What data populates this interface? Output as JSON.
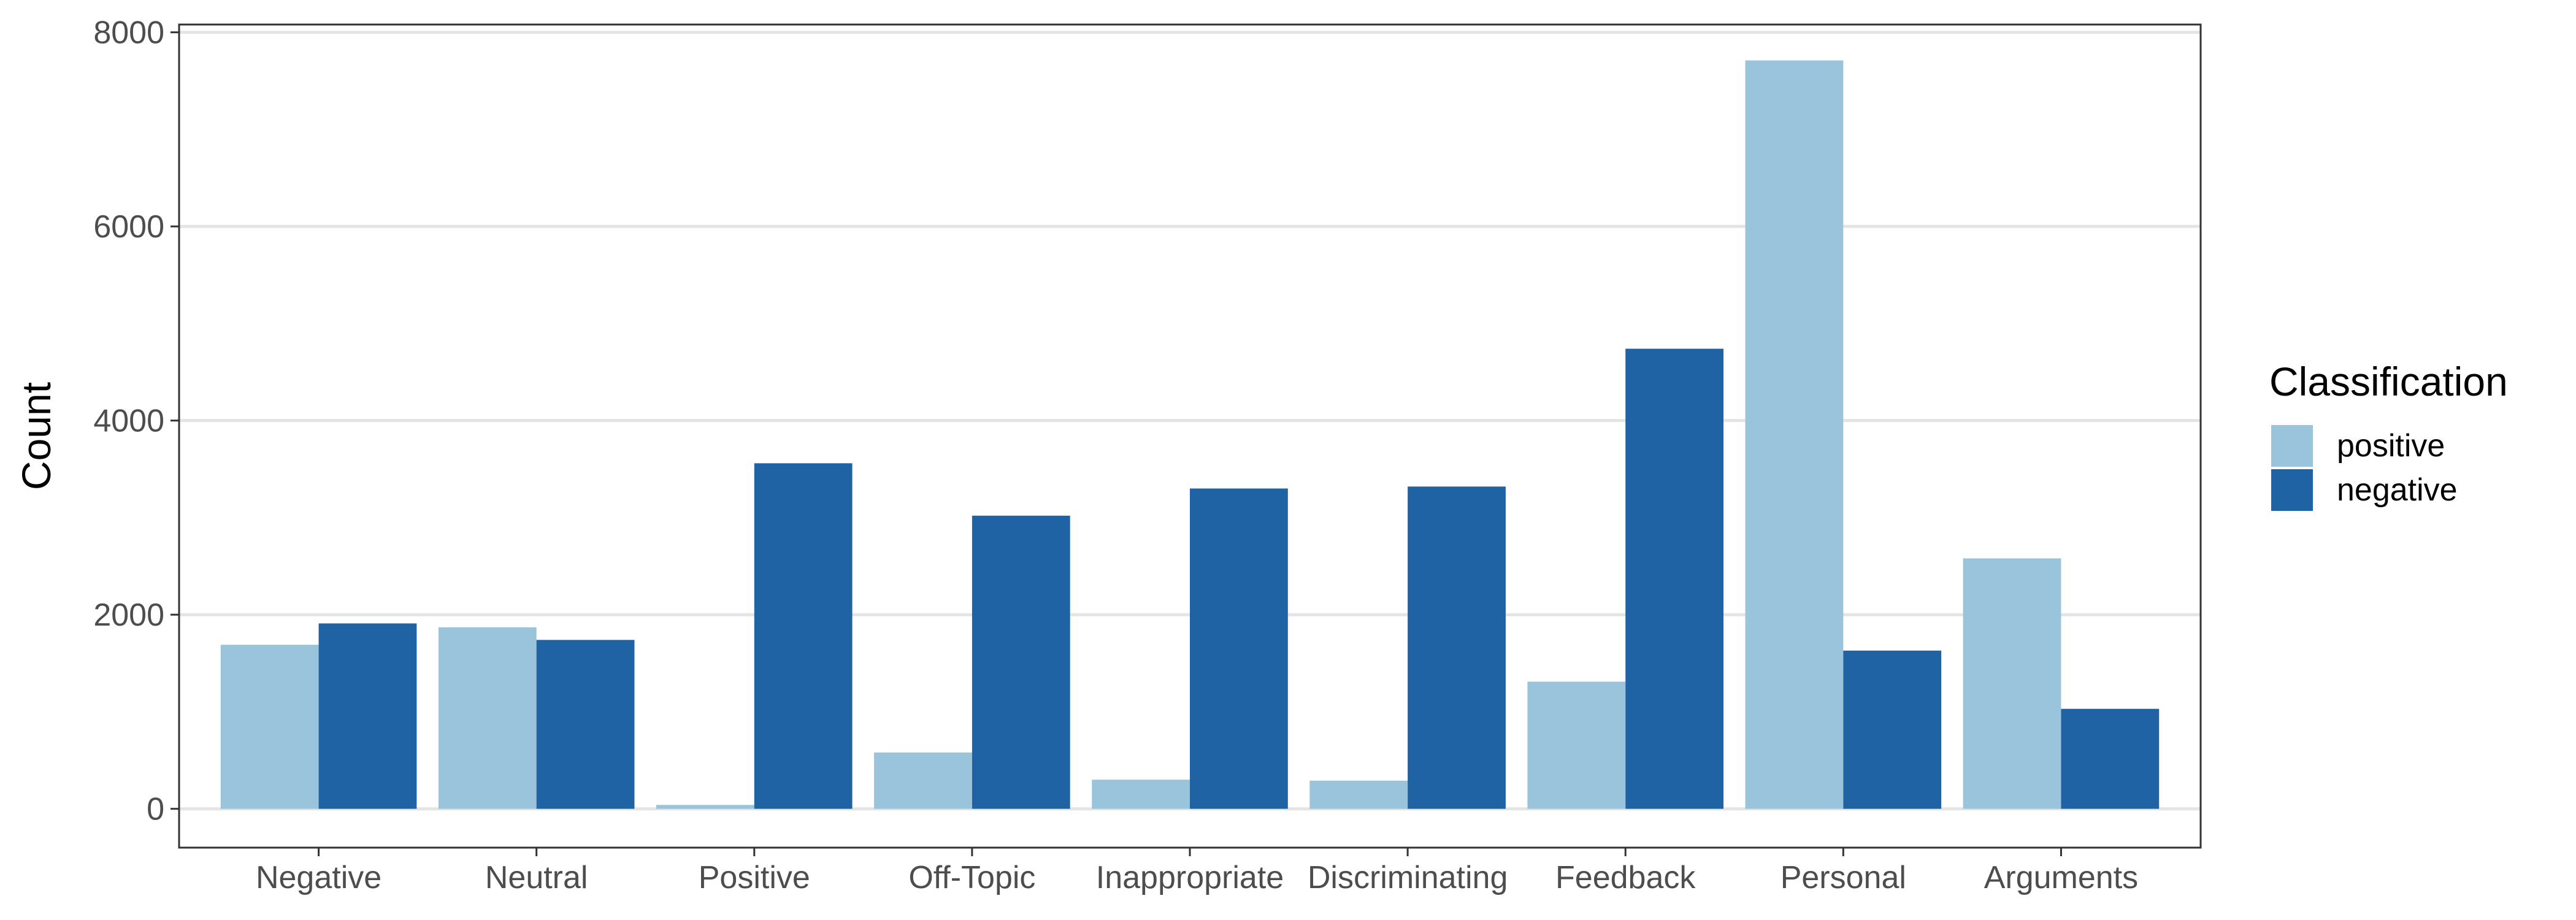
{
  "chart_data": {
    "type": "bar",
    "categories": [
      "Negative",
      "Neutral",
      "Positive",
      "Off-Topic",
      "Inappropriate",
      "Discriminating",
      "Feedback",
      "Personal",
      "Arguments"
    ],
    "series": [
      {
        "name": "positive",
        "color": "#9ac3dc",
        "values": [
          1690,
          1870,
          40,
          580,
          300,
          290,
          1310,
          7710,
          2580
        ]
      },
      {
        "name": "negative",
        "color": "#1f63a5",
        "values": [
          1910,
          1740,
          3560,
          3020,
          3300,
          3320,
          4740,
          1630,
          1030
        ]
      }
    ],
    "xlabel": "",
    "ylabel": "Count",
    "ylim": [
      -400,
      8080
    ],
    "yticks": [
      0,
      2000,
      4000,
      6000,
      8000
    ],
    "grid": true,
    "legend": {
      "title": "Classification",
      "placement": "right"
    }
  }
}
